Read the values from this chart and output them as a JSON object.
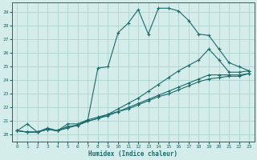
{
  "title": "",
  "xlabel": "Humidex (Indice chaleur)",
  "ylabel": "",
  "bg_color": "#d4ecea",
  "grid_color": "#b0d4d0",
  "line_color": "#1a6b6b",
  "marker": "+",
  "xlim": [
    -0.5,
    23.5
  ],
  "ylim": [
    19.5,
    29.7
  ],
  "xticks": [
    0,
    1,
    2,
    3,
    4,
    5,
    6,
    7,
    8,
    9,
    10,
    11,
    12,
    13,
    14,
    15,
    16,
    17,
    18,
    19,
    20,
    21,
    22,
    23
  ],
  "yticks": [
    20,
    21,
    22,
    23,
    24,
    25,
    26,
    27,
    28,
    29
  ],
  "lines": [
    {
      "x": [
        0,
        1,
        2,
        3,
        4,
        5,
        6,
        7,
        8,
        9,
        10,
        11,
        12,
        13,
        14,
        15,
        16,
        17,
        18,
        19,
        20,
        21,
        22,
        23
      ],
      "y": [
        20.3,
        20.8,
        20.2,
        20.5,
        20.3,
        20.8,
        20.8,
        21.1,
        24.9,
        25.0,
        27.5,
        28.2,
        29.2,
        27.4,
        29.3,
        29.3,
        29.1,
        28.4,
        27.4,
        27.3,
        26.3,
        25.3,
        25.0,
        24.7
      ]
    },
    {
      "x": [
        0,
        1,
        2,
        3,
        4,
        5,
        6,
        7,
        8,
        9,
        10,
        11,
        12,
        13,
        14,
        15,
        16,
        17,
        18,
        19,
        20,
        21,
        22,
        23
      ],
      "y": [
        20.3,
        20.2,
        20.2,
        20.4,
        20.3,
        20.6,
        20.7,
        21.1,
        21.3,
        21.5,
        21.9,
        22.3,
        22.7,
        23.2,
        23.7,
        24.2,
        24.7,
        25.1,
        25.5,
        26.3,
        25.5,
        24.6,
        24.6,
        24.7
      ]
    },
    {
      "x": [
        0,
        1,
        2,
        3,
        4,
        5,
        6,
        7,
        8,
        9,
        10,
        11,
        12,
        13,
        14,
        15,
        16,
        17,
        18,
        19,
        20,
        21,
        22,
        23
      ],
      "y": [
        20.3,
        20.2,
        20.2,
        20.4,
        20.3,
        20.6,
        20.7,
        21.0,
        21.2,
        21.5,
        21.7,
        22.0,
        22.3,
        22.6,
        22.9,
        23.2,
        23.5,
        23.8,
        24.1,
        24.4,
        24.4,
        24.4,
        24.4,
        24.5
      ]
    },
    {
      "x": [
        0,
        1,
        2,
        3,
        4,
        5,
        6,
        7,
        8,
        9,
        10,
        11,
        12,
        13,
        14,
        15,
        16,
        17,
        18,
        19,
        20,
        21,
        22,
        23
      ],
      "y": [
        20.3,
        20.2,
        20.2,
        20.4,
        20.3,
        20.5,
        20.7,
        21.0,
        21.2,
        21.4,
        21.7,
        21.9,
        22.2,
        22.5,
        22.8,
        23.0,
        23.3,
        23.6,
        23.9,
        24.1,
        24.2,
        24.3,
        24.3,
        24.5
      ]
    }
  ]
}
